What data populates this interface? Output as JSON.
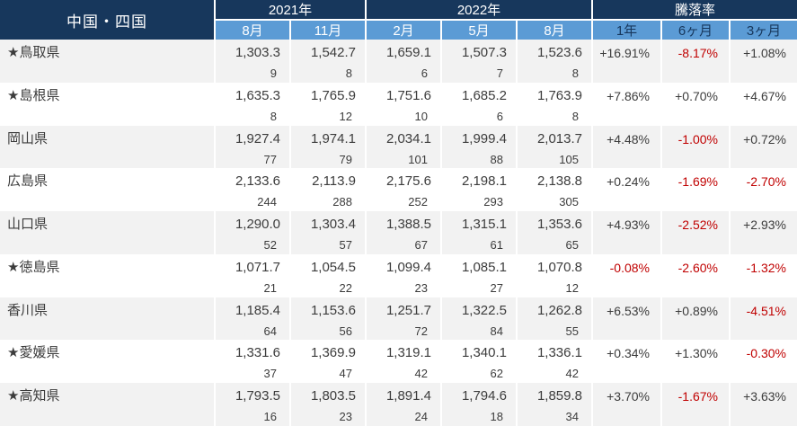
{
  "colors": {
    "header_navy": "#17375c",
    "subheader_blue": "#5b9bd5",
    "row_stripe_gray": "#f2f2f2",
    "negative_red": "#c00000",
    "text": "#3c3c3c"
  },
  "chart_data": {
    "type": "table",
    "title": "中国・四国",
    "column_groups": [
      {
        "label": "2021年",
        "columns": [
          "8月",
          "11月"
        ]
      },
      {
        "label": "2022年",
        "columns": [
          "2月",
          "5月",
          "8月"
        ]
      },
      {
        "label": "騰落率",
        "columns": [
          "1年",
          "6ヶ月",
          "3ヶ月"
        ]
      }
    ],
    "rows": [
      {
        "name": "★鳥取県",
        "values": [
          {
            "price": "1,303.3",
            "count": "9"
          },
          {
            "price": "1,542.7",
            "count": "8"
          },
          {
            "price": "1,659.1",
            "count": "6"
          },
          {
            "price": "1,507.3",
            "count": "7"
          },
          {
            "price": "1,523.6",
            "count": "8"
          }
        ],
        "changes": [
          "+16.91%",
          "-8.17%",
          "+1.08%"
        ]
      },
      {
        "name": "★島根県",
        "values": [
          {
            "price": "1,635.3",
            "count": "8"
          },
          {
            "price": "1,765.9",
            "count": "12"
          },
          {
            "price": "1,751.6",
            "count": "10"
          },
          {
            "price": "1,685.2",
            "count": "6"
          },
          {
            "price": "1,763.9",
            "count": "8"
          }
        ],
        "changes": [
          "+7.86%",
          "+0.70%",
          "+4.67%"
        ]
      },
      {
        "name": "岡山県",
        "values": [
          {
            "price": "1,927.4",
            "count": "77"
          },
          {
            "price": "1,974.1",
            "count": "79"
          },
          {
            "price": "2,034.1",
            "count": "101"
          },
          {
            "price": "1,999.4",
            "count": "88"
          },
          {
            "price": "2,013.7",
            "count": "105"
          }
        ],
        "changes": [
          "+4.48%",
          "-1.00%",
          "+0.72%"
        ]
      },
      {
        "name": "広島県",
        "values": [
          {
            "price": "2,133.6",
            "count": "244"
          },
          {
            "price": "2,113.9",
            "count": "288"
          },
          {
            "price": "2,175.6",
            "count": "252"
          },
          {
            "price": "2,198.1",
            "count": "293"
          },
          {
            "price": "2,138.8",
            "count": "305"
          }
        ],
        "changes": [
          "+0.24%",
          "-1.69%",
          "-2.70%"
        ]
      },
      {
        "name": "山口県",
        "values": [
          {
            "price": "1,290.0",
            "count": "52"
          },
          {
            "price": "1,303.4",
            "count": "57"
          },
          {
            "price": "1,388.5",
            "count": "67"
          },
          {
            "price": "1,315.1",
            "count": "61"
          },
          {
            "price": "1,353.6",
            "count": "65"
          }
        ],
        "changes": [
          "+4.93%",
          "-2.52%",
          "+2.93%"
        ]
      },
      {
        "name": "★徳島県",
        "values": [
          {
            "price": "1,071.7",
            "count": "21"
          },
          {
            "price": "1,054.5",
            "count": "22"
          },
          {
            "price": "1,099.4",
            "count": "23"
          },
          {
            "price": "1,085.1",
            "count": "27"
          },
          {
            "price": "1,070.8",
            "count": "12"
          }
        ],
        "changes": [
          "-0.08%",
          "-2.60%",
          "-1.32%"
        ]
      },
      {
        "name": "香川県",
        "values": [
          {
            "price": "1,185.4",
            "count": "64"
          },
          {
            "price": "1,153.6",
            "count": "56"
          },
          {
            "price": "1,251.7",
            "count": "72"
          },
          {
            "price": "1,322.5",
            "count": "84"
          },
          {
            "price": "1,262.8",
            "count": "55"
          }
        ],
        "changes": [
          "+6.53%",
          "+0.89%",
          "-4.51%"
        ]
      },
      {
        "name": "★愛媛県",
        "values": [
          {
            "price": "1,331.6",
            "count": "37"
          },
          {
            "price": "1,369.9",
            "count": "47"
          },
          {
            "price": "1,319.1",
            "count": "42"
          },
          {
            "price": "1,340.1",
            "count": "62"
          },
          {
            "price": "1,336.1",
            "count": "42"
          }
        ],
        "changes": [
          "+0.34%",
          "+1.30%",
          "-0.30%"
        ]
      },
      {
        "name": "★高知県",
        "values": [
          {
            "price": "1,793.5",
            "count": "16"
          },
          {
            "price": "1,803.5",
            "count": "23"
          },
          {
            "price": "1,891.4",
            "count": "24"
          },
          {
            "price": "1,794.6",
            "count": "18"
          },
          {
            "price": "1,859.8",
            "count": "34"
          }
        ],
        "changes": [
          "+3.70%",
          "-1.67%",
          "+3.63%"
        ]
      }
    ]
  }
}
